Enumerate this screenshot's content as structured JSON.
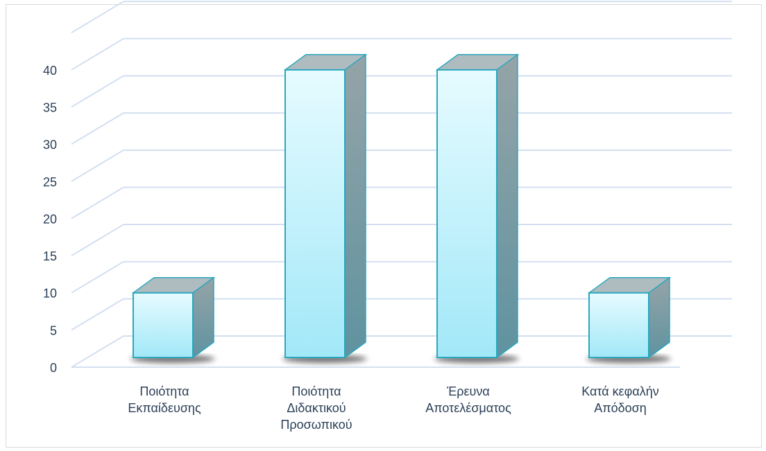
{
  "chart_data": {
    "type": "bar",
    "title": "",
    "xlabel": "",
    "ylabel": "",
    "categories": [
      [
        "Ποιότητα",
        "Εκπαίδευσης"
      ],
      [
        "Ποιότητα",
        "Διδακτικού",
        "Προσωπικού"
      ],
      [
        "Έρευνα",
        "Αποτελέσματος"
      ],
      [
        "Κατά κεφαλήν",
        "Απόδοση"
      ]
    ],
    "values": [
      10,
      40,
      40,
      10
    ],
    "ylim": [
      0,
      40
    ],
    "yticks": [
      0,
      5,
      10,
      15,
      20,
      25,
      30,
      35,
      40
    ],
    "grid": true,
    "style": "3d-column",
    "colors": {
      "front_top": "#e6fbff",
      "front_bottom": "#a2e8f8",
      "side": "#6a96a0",
      "top": "#aebcc0",
      "border": "#29a7bd",
      "grid": "#d3dff0",
      "text": "#2b3f57"
    }
  }
}
